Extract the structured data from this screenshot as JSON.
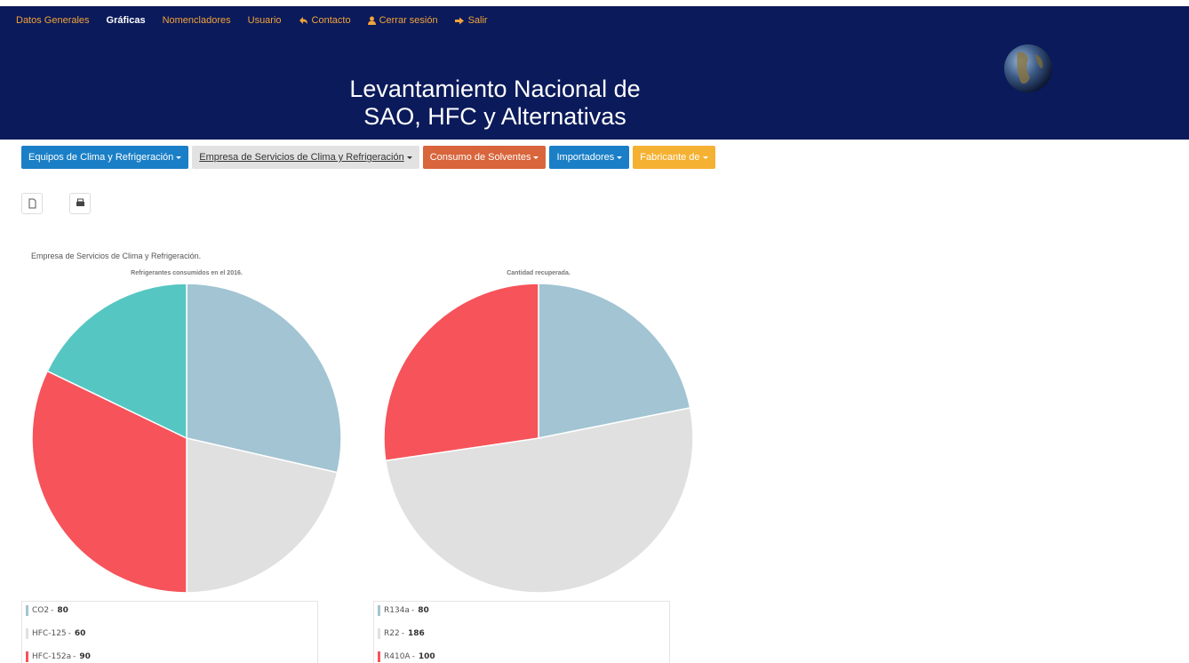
{
  "nav": {
    "links": [
      "Datos Generales",
      "Gráficas",
      "Nomencladores",
      "Usuario",
      "Contacto",
      "Cerrar sesión",
      "Salir"
    ]
  },
  "header": {
    "title_line1": "Levantamiento Nacional de",
    "title_line2": "SAO, HFC y Alternativas"
  },
  "menu": [
    "Equipos de Clima y Refrigeración",
    "Empresa de Servicios de Clima y Refrigeración",
    "Consumo de Solventes",
    "Importadores",
    "Fabricante de"
  ],
  "section_title": "Empresa de Servicios de Clima y Refrigeración.",
  "chart_data": [
    {
      "type": "pie",
      "title": "Refrigerantes consumidos en el 2016.",
      "legend_separator": "-",
      "categories": [
        "CO2",
        "HFC-125",
        "HFC-152a",
        null
      ],
      "values": [
        80,
        60,
        90,
        50
      ],
      "colors": [
        "#a2c4d3",
        "#e0e0e0",
        "#f6535a",
        "#55c6c2"
      ]
    },
    {
      "type": "pie",
      "title": "Cantidad recuperada.",
      "legend_separator": "-",
      "categories": [
        "R134a",
        "R22",
        "R410A"
      ],
      "values": [
        80,
        186,
        100
      ],
      "colors": [
        "#a2c4d3",
        "#e0e0e0",
        "#f6535a"
      ]
    }
  ]
}
